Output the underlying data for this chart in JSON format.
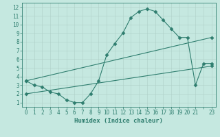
{
  "line1_x": [
    0,
    1,
    2,
    3,
    4,
    5,
    6,
    7,
    8,
    9,
    10,
    11,
    12,
    13,
    14,
    15,
    16,
    17,
    18,
    19,
    20,
    21,
    22,
    23
  ],
  "line1_y": [
    3.5,
    3.0,
    2.8,
    2.2,
    2.0,
    1.3,
    1.0,
    1.0,
    2.0,
    3.5,
    6.5,
    7.8,
    9.0,
    10.8,
    11.5,
    11.8,
    11.5,
    10.5,
    9.5,
    8.5,
    8.5,
    3.0,
    5.5,
    5.5
  ],
  "line2_x": [
    0,
    23
  ],
  "line2_y": [
    3.5,
    8.5
  ],
  "line3_x": [
    0,
    23
  ],
  "line3_y": [
    2.0,
    5.2
  ],
  "line_color": "#2e7d6e",
  "bg_color": "#c5e8e0",
  "grid_color": "#aed0c8",
  "xlabel": "Humidex (Indice chaleur)",
  "xlim": [
    -0.5,
    23.5
  ],
  "ylim": [
    0.5,
    12.5
  ],
  "xticks": [
    0,
    1,
    2,
    3,
    4,
    5,
    6,
    7,
    8,
    9,
    10,
    11,
    12,
    13,
    14,
    15,
    16,
    17,
    18,
    19,
    20,
    21,
    23
  ],
  "yticks": [
    1,
    2,
    3,
    4,
    5,
    6,
    7,
    8,
    9,
    10,
    11,
    12
  ],
  "marker": "D",
  "markersize": 2.5,
  "linewidth": 0.8,
  "tick_fontsize": 5.5,
  "xlabel_fontsize": 6.5
}
